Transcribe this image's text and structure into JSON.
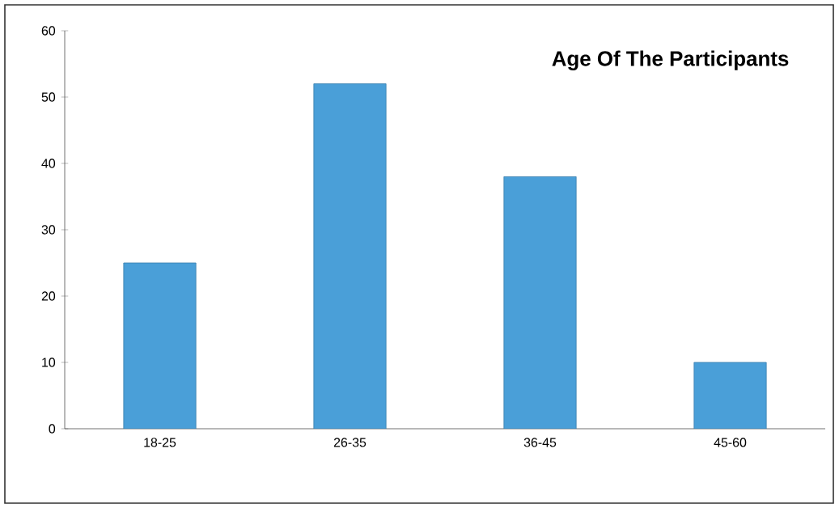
{
  "chart_data": {
    "type": "bar",
    "title": "Age Of The Participants",
    "categories": [
      "18-25",
      "26-35",
      "36-45",
      "45-60"
    ],
    "values": [
      25,
      52,
      38,
      10
    ],
    "color": "#4a9fd8",
    "ylim": [
      0,
      60
    ],
    "yticks": [
      0,
      10,
      20,
      30,
      40,
      50,
      60
    ]
  }
}
